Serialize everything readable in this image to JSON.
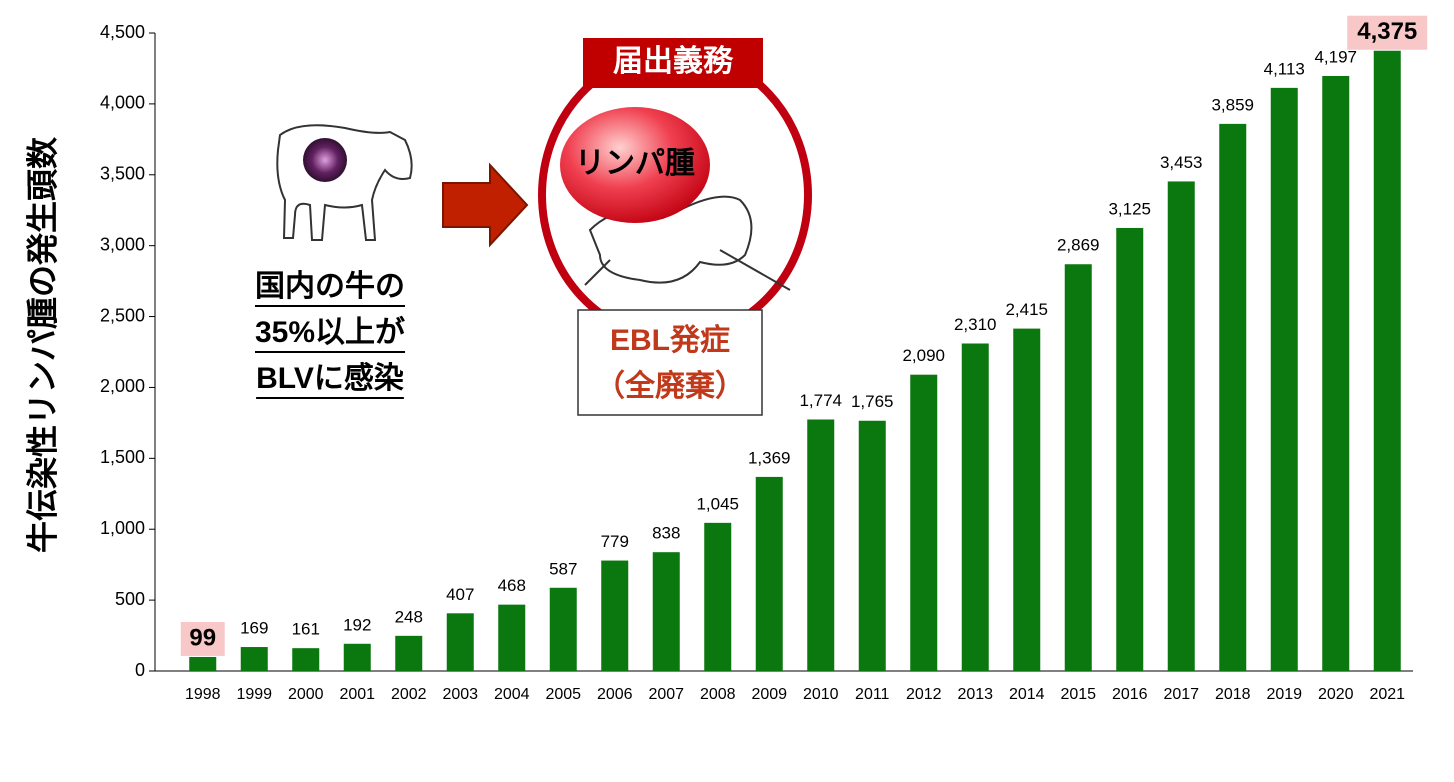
{
  "chart_data": {
    "type": "bar",
    "y_axis_label": "牛伝染性リンパ腫の発生頭数",
    "categories": [
      "1998",
      "1999",
      "2000",
      "2001",
      "2002",
      "2003",
      "2004",
      "2005",
      "2006",
      "2007",
      "2008",
      "2009",
      "2010",
      "2011",
      "2012",
      "2013",
      "2014",
      "2015",
      "2016",
      "2017",
      "2018",
      "2019",
      "2020",
      "2021"
    ],
    "values": [
      99,
      169,
      161,
      192,
      248,
      407,
      468,
      587,
      779,
      838,
      1045,
      1369,
      1774,
      1765,
      2090,
      2310,
      2415,
      2869,
      3125,
      3453,
      3859,
      4113,
      4197,
      4375
    ],
    "value_labels": [
      "99",
      "169",
      "161",
      "192",
      "248",
      "407",
      "468",
      "587",
      "779",
      "838",
      "1,045",
      "1,369",
      "1,774",
      "1,765",
      "2,090",
      "2,310",
      "2,415",
      "2,869",
      "3,125",
      "3,453",
      "3,859",
      "4,113",
      "4,197",
      "4,375"
    ],
    "color": "#0b770f",
    "ylim": [
      0,
      4500
    ],
    "yticks": [
      0,
      500,
      {
        "value": 1000,
        "label": "1,000"
      },
      {
        "value": 1500,
        "label": "1,500"
      },
      {
        "value": 2000,
        "label": "2,000"
      },
      {
        "value": 2500,
        "label": "2,500"
      },
      {
        "value": 3000,
        "label": "3,000"
      },
      {
        "value": 3500,
        "label": "3,500"
      },
      {
        "value": 4000,
        "label": "4,000"
      },
      {
        "value": 4500,
        "label": "4,500"
      }
    ],
    "grid": false,
    "annotations": {
      "infection": [
        "国内の牛の",
        "35%以上が",
        "BLVに感染"
      ],
      "notification": "届出義務",
      "lymphoma": "リンパ腫",
      "outcome": [
        "EBL発症",
        "（全廃棄）"
      ]
    }
  }
}
